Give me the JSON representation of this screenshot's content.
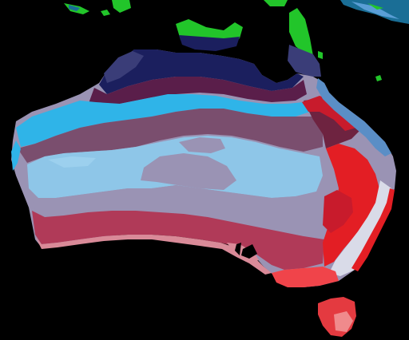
{
  "map": {
    "background_color": "#000000",
    "landmasses": [
      "papua-new-guinea",
      "indonesia",
      "australia-mainland",
      "tasmania"
    ],
    "zone_colors": {
      "tropical_north_navy": "#1b1f5e",
      "tropical_north_slate": "#3a3d78",
      "north_plum": "#5a1e4a",
      "north_maroon": "#6e2340",
      "sky_blue_band": "#2fb4e8",
      "light_blue_interior": "#8ec6e8",
      "mauve_band": "#7a4e6e",
      "grey_mauve_interior": "#9a93b4",
      "rose_band": "#b03a58",
      "pink_south_coast": "#d98a98",
      "east_crimson": "#c81b2c",
      "east_red": "#e31e24",
      "east_coast_steel_blue": "#5a8ec6",
      "south_east_pale": "#d9dbe8",
      "victoria_coral": "#f0444a",
      "tasmania_red": "#e43a40",
      "png_green": "#22c52a",
      "indonesia_teal": "#1a6e96"
    }
  }
}
